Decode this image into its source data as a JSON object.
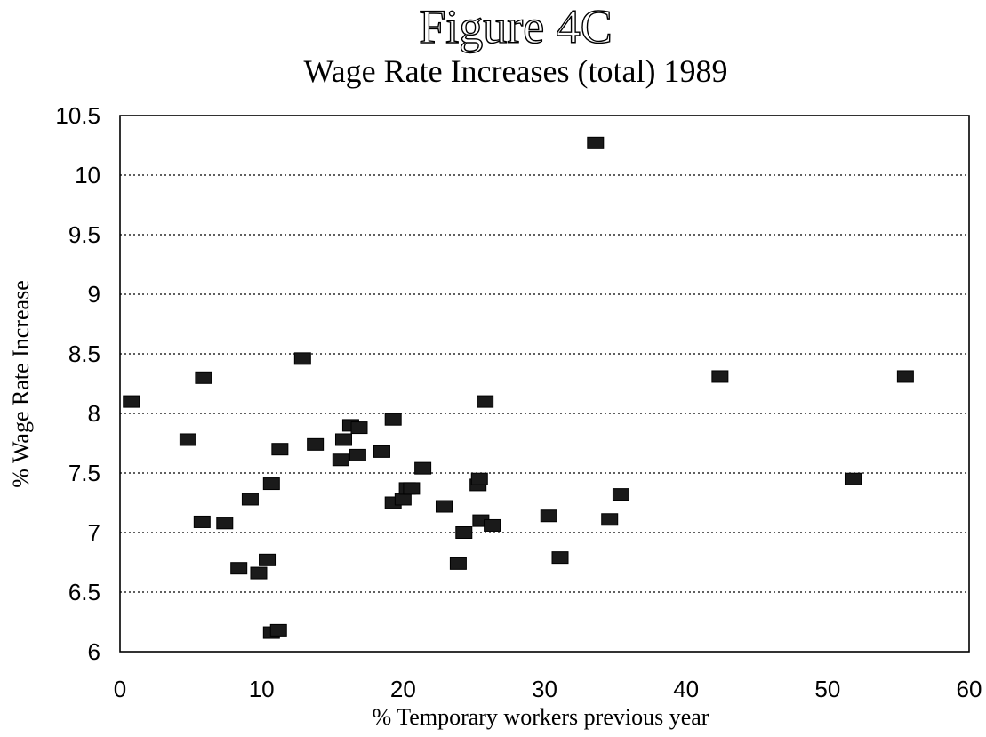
{
  "chart_data": {
    "type": "scatter",
    "title": "Figure 4C",
    "subtitle": "Wage Rate Increases (total) 1989",
    "xlabel": "% Temporary workers previous year",
    "ylabel": "% Wage Rate Increase",
    "xlim": [
      0,
      60
    ],
    "ylim": [
      6,
      10.5
    ],
    "x_ticks": [
      "0",
      "10",
      "20",
      "30",
      "40",
      "50",
      "60"
    ],
    "y_ticks": [
      "6",
      "6.5",
      "7",
      "7.5",
      "8",
      "8.5",
      "9",
      "9.5",
      "10",
      "10.5"
    ],
    "grid": "horizontal dotted",
    "legend": "none",
    "marker": "square",
    "points": [
      {
        "x": 0.8,
        "y": 8.1
      },
      {
        "x": 4.8,
        "y": 7.78
      },
      {
        "x": 5.9,
        "y": 8.3
      },
      {
        "x": 5.8,
        "y": 7.09
      },
      {
        "x": 7.4,
        "y": 7.08
      },
      {
        "x": 8.4,
        "y": 6.7
      },
      {
        "x": 9.2,
        "y": 7.28
      },
      {
        "x": 9.8,
        "y": 6.66
      },
      {
        "x": 10.4,
        "y": 6.77
      },
      {
        "x": 10.7,
        "y": 7.41
      },
      {
        "x": 10.7,
        "y": 6.16
      },
      {
        "x": 11.2,
        "y": 6.18
      },
      {
        "x": 11.3,
        "y": 7.7
      },
      {
        "x": 12.9,
        "y": 8.46
      },
      {
        "x": 13.8,
        "y": 7.74
      },
      {
        "x": 15.6,
        "y": 7.61
      },
      {
        "x": 15.8,
        "y": 7.78
      },
      {
        "x": 16.3,
        "y": 7.9
      },
      {
        "x": 16.8,
        "y": 7.65
      },
      {
        "x": 16.9,
        "y": 7.88
      },
      {
        "x": 18.5,
        "y": 7.68
      },
      {
        "x": 19.3,
        "y": 7.95
      },
      {
        "x": 19.3,
        "y": 7.25
      },
      {
        "x": 20.0,
        "y": 7.28
      },
      {
        "x": 20.3,
        "y": 7.37
      },
      {
        "x": 20.6,
        "y": 7.37
      },
      {
        "x": 21.4,
        "y": 7.54
      },
      {
        "x": 22.9,
        "y": 7.22
      },
      {
        "x": 23.9,
        "y": 6.74
      },
      {
        "x": 24.3,
        "y": 7.0
      },
      {
        "x": 25.3,
        "y": 7.4
      },
      {
        "x": 25.4,
        "y": 7.45
      },
      {
        "x": 25.5,
        "y": 7.1
      },
      {
        "x": 25.8,
        "y": 8.1
      },
      {
        "x": 26.3,
        "y": 7.06
      },
      {
        "x": 30.3,
        "y": 7.14
      },
      {
        "x": 31.1,
        "y": 6.79
      },
      {
        "x": 33.6,
        "y": 10.27
      },
      {
        "x": 34.6,
        "y": 7.11
      },
      {
        "x": 35.4,
        "y": 7.32
      },
      {
        "x": 42.4,
        "y": 8.31
      },
      {
        "x": 51.8,
        "y": 7.45
      },
      {
        "x": 55.5,
        "y": 8.31
      }
    ]
  }
}
